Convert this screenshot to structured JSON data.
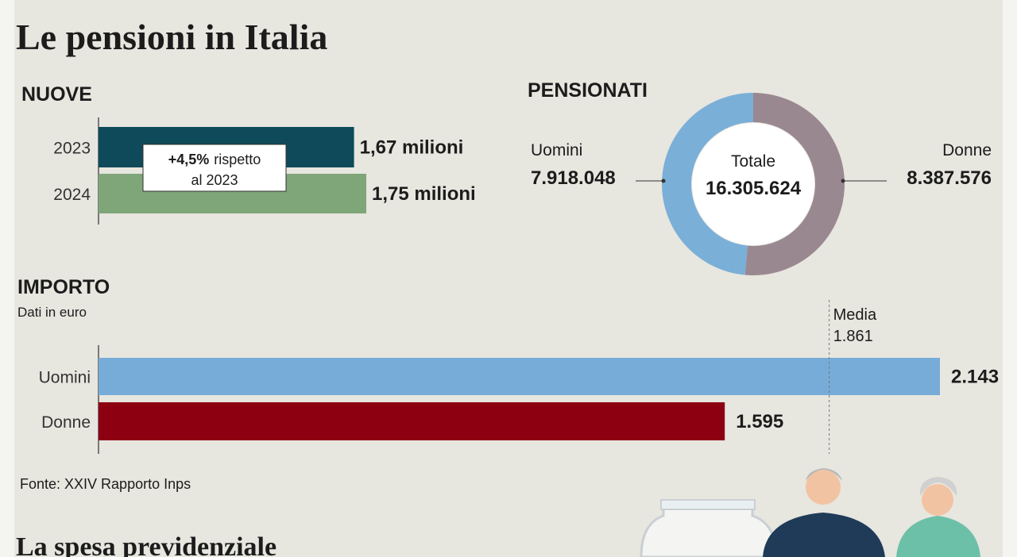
{
  "title": "Le pensioni in Italia",
  "chart_data": [
    {
      "type": "hbar",
      "title": "NUOVE",
      "categories": [
        "2023",
        "2024"
      ],
      "values": [
        1.67,
        1.75
      ],
      "value_labels": [
        "1,67 milioni",
        "1,75 milioni"
      ],
      "colors": [
        "#0e4a5a",
        "#7ea679"
      ],
      "annotation": [
        "+4,5%",
        "rispetto",
        "al 2023"
      ]
    },
    {
      "type": "donut",
      "title": "PENSIONATI",
      "categories": [
        "Uomini",
        "Donne"
      ],
      "values": [
        7918048,
        8387576
      ],
      "value_labels": [
        "7.918.048",
        "8.387.576"
      ],
      "colors": [
        "#7aafd8",
        "#9a8890"
      ],
      "center_label": "Totale",
      "center_value": 16305624,
      "center_value_label": "16.305.624"
    },
    {
      "type": "hbar",
      "title": "IMPORTO",
      "subtitle": "Dati in euro",
      "categories": [
        "Uomini",
        "Donne"
      ],
      "values": [
        2143,
        1595
      ],
      "value_labels": [
        "2.143",
        "1.595"
      ],
      "colors": [
        "#77acd8",
        "#8c0012"
      ],
      "reference_line": {
        "label": "Media",
        "value": 1861,
        "value_label": "1.861"
      }
    }
  ],
  "source": "Fonte: XXIV Rapporto Inps",
  "next_title": "La spesa previdenziale"
}
